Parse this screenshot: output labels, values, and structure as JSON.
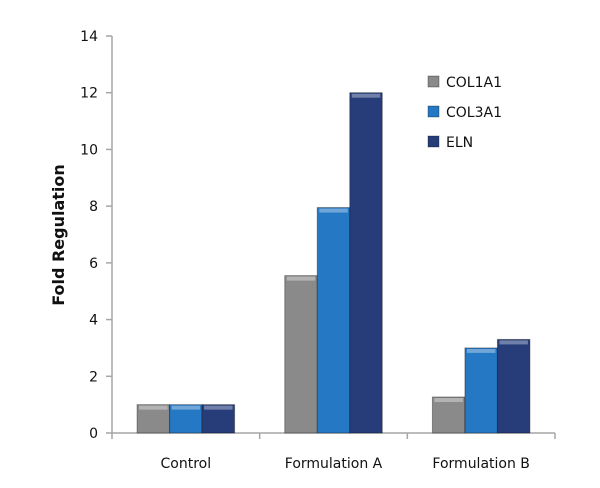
{
  "chart_data": {
    "type": "bar",
    "title": "",
    "xlabel": "",
    "ylabel": "Fold Regulation",
    "ylim": [
      0,
      14
    ],
    "yticks": [
      0,
      2,
      4,
      6,
      8,
      10,
      12,
      14
    ],
    "categories": [
      "Control",
      "Formulation A",
      "Formulation B"
    ],
    "series": [
      {
        "name": "COL1A1",
        "color": "#8a8a8a",
        "values": [
          1.0,
          5.55,
          1.27
        ]
      },
      {
        "name": "COL3A1",
        "color": "#2478c4",
        "values": [
          1.0,
          7.95,
          3.0
        ]
      },
      {
        "name": "ELN",
        "color": "#263d7a",
        "values": [
          1.0,
          12.0,
          3.3
        ]
      }
    ],
    "legend_position": "top-right",
    "grid": false
  }
}
